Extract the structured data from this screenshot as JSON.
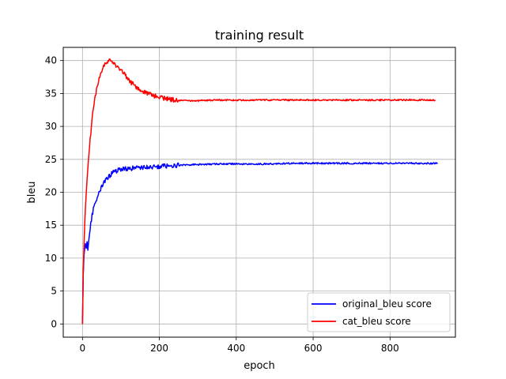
{
  "chart_data": {
    "type": "line",
    "title": "training result",
    "xlabel": "epoch",
    "ylabel": "bleu",
    "xlim": [
      -50,
      970
    ],
    "ylim": [
      -2,
      42
    ],
    "xticks": [
      0,
      200,
      400,
      600,
      800
    ],
    "yticks": [
      0,
      5,
      10,
      15,
      20,
      25,
      30,
      35,
      40
    ],
    "grid": true,
    "legend_position": "bottom-right",
    "series": [
      {
        "name": "original_bleu score",
        "color": "#0000ff",
        "x": [
          0,
          2,
          4,
          6,
          8,
          10,
          12,
          14,
          16,
          18,
          20,
          25,
          30,
          35,
          40,
          50,
          60,
          70,
          80,
          90,
          100,
          120,
          140,
          160,
          180,
          200,
          220,
          240,
          260,
          280,
          300,
          350,
          400,
          450,
          500,
          550,
          600,
          650,
          700,
          750,
          800,
          850,
          900,
          924
        ],
        "y": [
          0,
          7.5,
          10.5,
          11.5,
          12.2,
          11.5,
          12.5,
          11.2,
          12.5,
          13.5,
          14.5,
          16.5,
          17.8,
          18.5,
          19.5,
          20.8,
          21.8,
          22.5,
          23.0,
          23.3,
          23.5,
          23.6,
          23.7,
          23.8,
          23.8,
          23.9,
          24.0,
          24.1,
          24.1,
          24.2,
          24.2,
          24.3,
          24.3,
          24.3,
          24.3,
          24.4,
          24.4,
          24.4,
          24.4,
          24.4,
          24.4,
          24.4,
          24.4,
          24.4
        ]
      },
      {
        "name": "cat_bleu score",
        "color": "#ff0000",
        "x": [
          0,
          2,
          4,
          6,
          8,
          10,
          12,
          15,
          20,
          25,
          30,
          35,
          40,
          45,
          50,
          55,
          60,
          65,
          70,
          75,
          80,
          90,
          100,
          110,
          120,
          130,
          140,
          150,
          160,
          170,
          180,
          190,
          200,
          210,
          220,
          230,
          240,
          260,
          280,
          300,
          320,
          350,
          400,
          450,
          500,
          550,
          600,
          650,
          700,
          750,
          800,
          850,
          900,
          918
        ],
        "y": [
          0,
          8,
          12,
          15.5,
          18,
          20,
          22,
          24.5,
          28,
          31,
          33.5,
          35,
          36.5,
          37.5,
          38.3,
          39,
          39.5,
          39.8,
          39.9,
          39.8,
          39.6,
          39.2,
          38.5,
          37.8,
          37,
          36.5,
          36,
          35.6,
          35.3,
          35,
          34.8,
          34.6,
          34.4,
          34.3,
          34.2,
          34.1,
          34.0,
          33.9,
          33.9,
          33.9,
          33.95,
          34.0,
          34.0,
          34.0,
          34.0,
          34.0,
          34.0,
          34.0,
          34.0,
          34.0,
          34.0,
          34.0,
          34.0,
          34.0
        ]
      }
    ]
  }
}
